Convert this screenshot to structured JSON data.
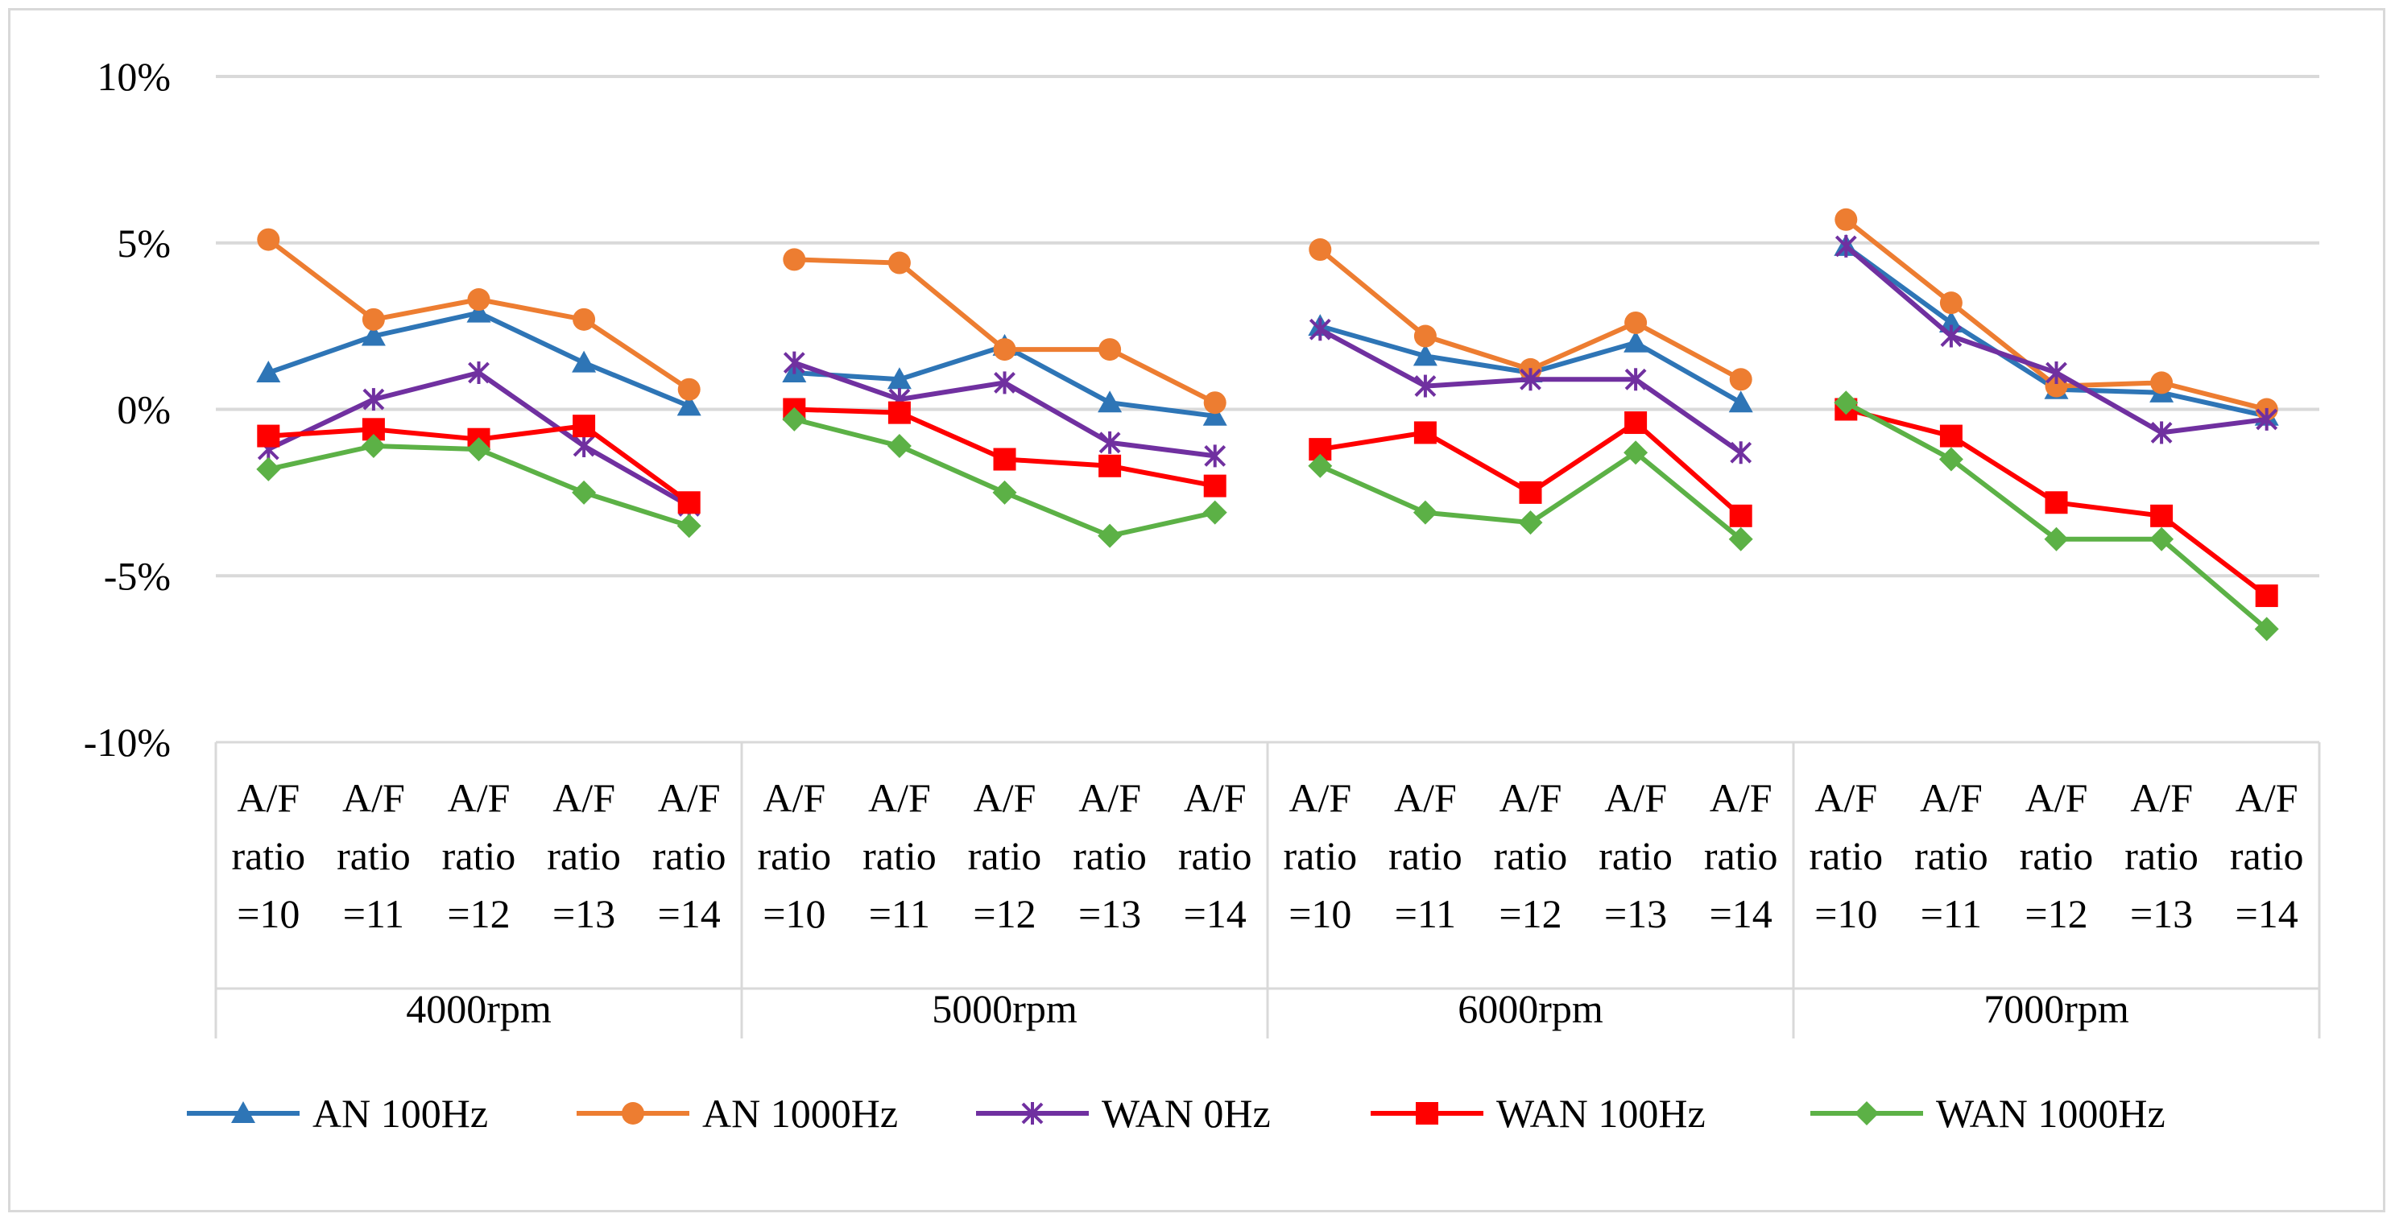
{
  "chart_data": {
    "type": "line",
    "title": "",
    "xlabel": "",
    "ylabel": "",
    "ylim": [
      -10,
      10
    ],
    "yticks": [
      10,
      5,
      0,
      -5,
      -10
    ],
    "ytick_labels": [
      "10%",
      "5%",
      "0%",
      "-5%",
      "-10%"
    ],
    "category_lines": [
      [
        "A/F",
        "ratio",
        "=10"
      ],
      [
        "A/F",
        "ratio",
        "=11"
      ],
      [
        "A/F",
        "ratio",
        "=12"
      ],
      [
        "A/F",
        "ratio",
        "=13"
      ],
      [
        "A/F",
        "ratio",
        "=14"
      ]
    ],
    "groups": [
      "4000rpm",
      "5000rpm",
      "6000rpm",
      "7000rpm"
    ],
    "grid": true,
    "legend_position": "bottom",
    "series": [
      {
        "name": "AN 100Hz",
        "color": "#2e75b6",
        "marker": "triangle",
        "values": [
          1.1,
          2.2,
          2.9,
          1.4,
          0.1,
          1.1,
          0.9,
          1.9,
          0.2,
          -0.2,
          2.5,
          1.6,
          1.1,
          2.0,
          0.2,
          4.9,
          2.6,
          0.6,
          0.5,
          -0.2
        ]
      },
      {
        "name": "AN 1000Hz",
        "color": "#ed7d31",
        "marker": "circle",
        "values": [
          5.1,
          2.7,
          3.3,
          2.7,
          0.6,
          4.5,
          4.4,
          1.8,
          1.8,
          0.2,
          4.8,
          2.2,
          1.2,
          2.6,
          0.9,
          5.7,
          3.2,
          0.7,
          0.8,
          0.0
        ]
      },
      {
        "name": "WAN 0Hz",
        "color": "#7030a0",
        "marker": "x",
        "values": [
          -1.2,
          0.3,
          1.1,
          -1.1,
          -2.9,
          1.4,
          0.3,
          0.8,
          -1.0,
          -1.4,
          2.4,
          0.7,
          0.9,
          0.9,
          -1.3,
          4.9,
          2.2,
          1.1,
          -0.7,
          -0.3
        ]
      },
      {
        "name": "WAN 100Hz",
        "color": "#ff0000",
        "marker": "square",
        "values": [
          -0.8,
          -0.6,
          -0.9,
          -0.5,
          -2.8,
          0.0,
          -0.1,
          -1.5,
          -1.7,
          -2.3,
          -1.2,
          -0.7,
          -2.5,
          -0.4,
          -3.2,
          0.0,
          -0.8,
          -2.8,
          -3.2,
          -5.6
        ]
      },
      {
        "name": "WAN 1000Hz",
        "color": "#5cb146",
        "marker": "diamond",
        "values": [
          -1.8,
          -1.1,
          -1.2,
          -2.5,
          -3.5,
          -0.3,
          -1.1,
          -2.5,
          -3.8,
          -3.1,
          -1.7,
          -3.1,
          -3.4,
          -1.3,
          -3.9,
          0.2,
          -1.5,
          -3.9,
          -3.9,
          -6.6
        ]
      }
    ]
  }
}
